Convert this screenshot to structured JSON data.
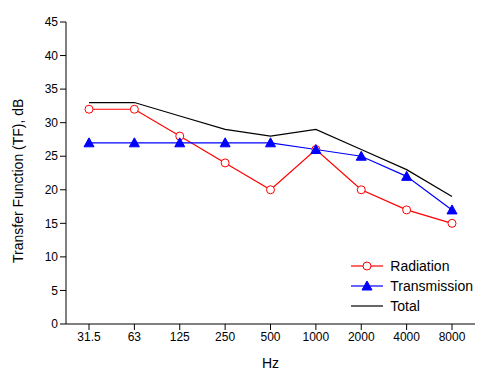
{
  "chart_data": {
    "type": "line",
    "x_label": "Hz",
    "y_label": "Transfer Function (TF), dB",
    "categories": [
      "31.5",
      "63",
      "125",
      "250",
      "500",
      "1000",
      "2000",
      "4000",
      "8000"
    ],
    "series": [
      {
        "name": "Radiation",
        "color": "#ff0000",
        "marker": "circle",
        "values": [
          32,
          32,
          28,
          24,
          20,
          26,
          20,
          17,
          15
        ]
      },
      {
        "name": "Transmission",
        "color": "#0000ff",
        "marker": "triangle",
        "values": [
          27,
          27,
          27,
          27,
          27,
          26,
          25,
          22,
          17
        ]
      },
      {
        "name": "Total",
        "color": "#000000",
        "marker": "none",
        "values": [
          33,
          33,
          31,
          29,
          28,
          29,
          26,
          23,
          19
        ]
      }
    ],
    "ylim": [
      0,
      45
    ],
    "yticks": [
      0,
      5,
      10,
      15,
      20,
      25,
      30,
      35,
      40,
      45
    ],
    "grid": false,
    "legend": "lower right"
  }
}
